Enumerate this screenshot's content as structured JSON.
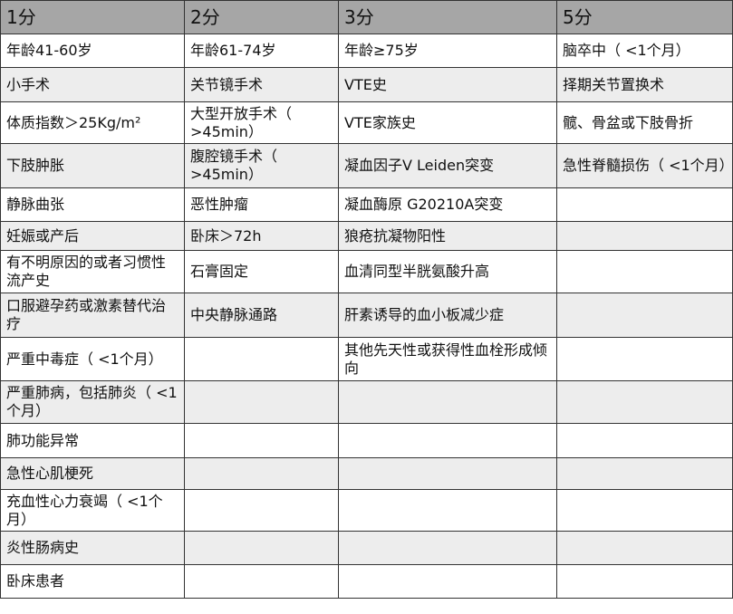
{
  "colors": {
    "header_bg": "#a6a6a6",
    "row_alt_bg": "#ededed",
    "row_bg": "#ffffff",
    "border": "#333333"
  },
  "headers": [
    "1分",
    "2分",
    "3分",
    "5分"
  ],
  "rows": [
    [
      "年龄41-60岁",
      "年龄61-74岁",
      "年龄≥75岁",
      "脑卒中（ <1个月）"
    ],
    [
      "小手术",
      "关节镜手术",
      "VTE史",
      "择期关节置换术"
    ],
    [
      "体质指数＞25Kg/m²",
      "大型开放手术（ >45min）",
      "VTE家族史",
      "髋、骨盆或下肢骨折"
    ],
    [
      "下肢肿胀",
      "腹腔镜手术（ >45min）",
      "凝血因子V Leiden突变",
      "急性脊髓损伤（ <1个月）"
    ],
    [
      "静脉曲张",
      "恶性肿瘤",
      "凝血酶原 G20210A突变",
      ""
    ],
    [
      "妊娠或产后",
      "卧床＞72h",
      "狼疮抗凝物阳性",
      ""
    ],
    [
      "有不明原因的或者习惯性流产史",
      "石膏固定",
      "血清同型半胱氨酸升高",
      ""
    ],
    [
      "口服避孕药或激素替代治疗",
      "中央静脉通路",
      "肝素诱导的血小板减少症",
      ""
    ],
    [
      "严重中毒症（ <1个月）",
      "",
      "其他先天性或获得性血栓形成倾向",
      ""
    ],
    [
      "严重肺病，包括肺炎（ <1个月）",
      "",
      "",
      ""
    ],
    [
      "肺功能异常",
      "",
      "",
      ""
    ],
    [
      "急性心肌梗死",
      "",
      "",
      ""
    ],
    [
      "充血性心力衰竭（ <1个月）",
      "",
      "",
      ""
    ],
    [
      "炎性肠病史",
      "",
      "",
      ""
    ],
    [
      "卧床患者",
      "",
      "",
      ""
    ]
  ]
}
